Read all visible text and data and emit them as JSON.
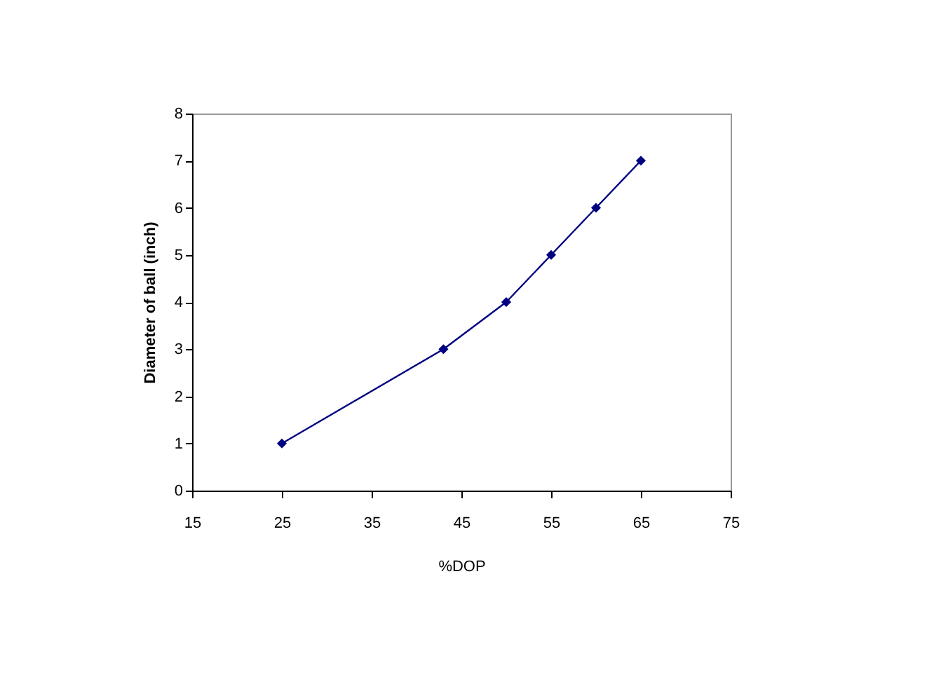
{
  "chart_data": {
    "type": "line",
    "xlabel": "%DOP",
    "ylabel": "Diameter of ball (inch)",
    "x": [
      25,
      43,
      50,
      55,
      60,
      65
    ],
    "series": [
      {
        "color": "#000080",
        "values": [
          1,
          3,
          4,
          5,
          6,
          7
        ]
      }
    ],
    "xlim": [
      15,
      75
    ],
    "xticks": [
      15,
      25,
      35,
      45,
      55,
      65,
      75
    ],
    "ylim": [
      0,
      8
    ],
    "yticks": [
      0,
      1,
      2,
      3,
      4,
      5,
      6,
      7,
      8
    ],
    "grid": false,
    "marker": "diamond",
    "line_style": "solid"
  }
}
